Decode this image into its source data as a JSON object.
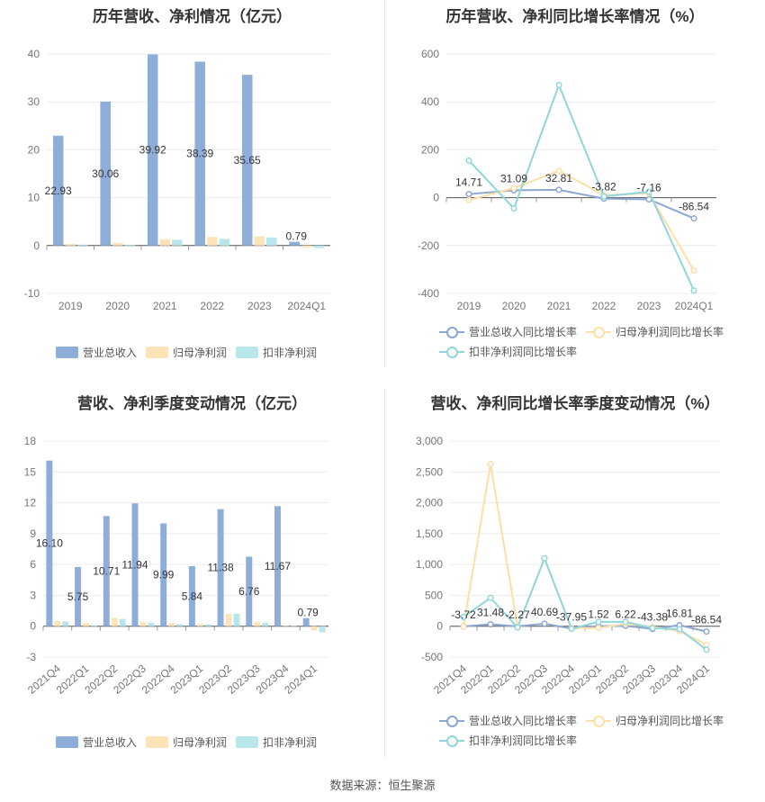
{
  "source": "数据来源：恒生聚源",
  "colors": {
    "revenue": "#8eadd9",
    "net": "#fde3b8",
    "deducted": "#b9e6ea",
    "revenue_line": "#8ca7d1",
    "net_line": "#fddfa7",
    "deducted_line": "#90d7dd"
  },
  "charts": [
    {
      "id": "annual-bar",
      "title": "历年营收、净利情况（亿元）",
      "type": "bar",
      "categories": [
        "2019",
        "2020",
        "2021",
        "2022",
        "2023",
        "2024Q1"
      ],
      "ylim": [
        -10,
        40
      ],
      "yticks": [
        "-10",
        "0",
        "10",
        "20",
        "30",
        "40"
      ],
      "series": [
        {
          "name": "营业总收入",
          "values": [
            22.93,
            30.06,
            39.92,
            38.39,
            35.65,
            0.79
          ],
          "labels": [
            "22.93",
            "30.06",
            "39.92",
            "38.39",
            "35.65",
            "0.79"
          ]
        },
        {
          "name": "归母净利润",
          "values": [
            0.3,
            0.55,
            1.3,
            1.8,
            1.9,
            -0.4
          ]
        },
        {
          "name": "扣非净利润",
          "values": [
            0.2,
            0.15,
            1.2,
            1.4,
            1.7,
            -0.5
          ]
        }
      ],
      "legend": [
        "营业总收入",
        "归母净利润",
        "扣非净利润"
      ]
    },
    {
      "id": "annual-line",
      "title": "历年营收、净利同比增长率情况（%）",
      "type": "line",
      "categories": [
        "2019",
        "2020",
        "2021",
        "2022",
        "2023",
        "2024Q1"
      ],
      "ylim": [
        -400,
        600
      ],
      "yticks": [
        "-400",
        "-200",
        "0",
        "200",
        "400",
        "600"
      ],
      "series": [
        {
          "name": "营业总收入同比增长率",
          "values": [
            14.71,
            31.09,
            32.81,
            -3.82,
            -7.16,
            -86.54
          ],
          "labels": [
            "14.71",
            "31.09",
            "32.81",
            "-3.82",
            "-7.16",
            "-86.54"
          ]
        },
        {
          "name": "归母净利润同比增长率",
          "values": [
            -10,
            40,
            112,
            10,
            18,
            -305
          ]
        },
        {
          "name": "扣非净利润同比增长率",
          "values": [
            155,
            -45,
            470,
            5,
            25,
            -388
          ]
        }
      ],
      "legend": [
        "营业总收入同比增长率",
        "归母净利润同比增长率",
        "扣非净利润同比增长率"
      ]
    },
    {
      "id": "quarter-bar",
      "title": "营收、净利季度变动情况（亿元）",
      "type": "bar",
      "categories": [
        "2021Q4",
        "2022Q1",
        "2022Q2",
        "2022Q3",
        "2022Q4",
        "2023Q1",
        "2023Q2",
        "2023Q3",
        "2023Q4",
        "2024Q1"
      ],
      "ylim": [
        -3,
        18
      ],
      "yticks": [
        "-3",
        "0",
        "3",
        "6",
        "9",
        "12",
        "15",
        "18"
      ],
      "series": [
        {
          "name": "营业总收入",
          "values": [
            16.1,
            5.75,
            10.71,
            11.94,
            9.99,
            5.84,
            11.38,
            6.76,
            11.67,
            0.79
          ],
          "labels": [
            "16.10",
            "5.75",
            "10.71",
            "11.94",
            "9.99",
            "5.84",
            "11.38",
            "6.76",
            "11.67",
            "0.79"
          ]
        },
        {
          "name": "归母净利润",
          "values": [
            0.5,
            0.3,
            0.8,
            0.4,
            0.3,
            0.2,
            1.2,
            0.4,
            0.05,
            -0.4
          ]
        },
        {
          "name": "扣非净利润",
          "values": [
            0.45,
            0.1,
            0.7,
            0.35,
            0.2,
            0.15,
            1.2,
            0.35,
            0.03,
            -0.6
          ]
        }
      ],
      "legend": [
        "营业总收入",
        "归母净利润",
        "扣非净利润"
      ]
    },
    {
      "id": "quarter-line",
      "title": "营收、净利同比增长率季度变动情况（%）",
      "type": "line",
      "categories": [
        "2021Q4",
        "2022Q1",
        "2022Q2",
        "2022Q3",
        "2022Q4",
        "2023Q1",
        "2023Q2",
        "2023Q3",
        "2023Q4",
        "2024Q1"
      ],
      "ylim": [
        -500,
        3000
      ],
      "yticks": [
        "-500",
        "0",
        "500",
        "1,000",
        "1,500",
        "2,000",
        "2,500",
        "3,000"
      ],
      "series": [
        {
          "name": "营业总收入同比增长率",
          "values": [
            -3.72,
            31.48,
            -2.27,
            40.69,
            -37.95,
            1.52,
            6.22,
            -43.38,
            16.81,
            -86.54
          ],
          "labels": [
            "-3.72",
            "31.48",
            "-2.27",
            "40.69",
            "-37.95",
            "1.52",
            "6.22",
            "-43.38",
            "16.81",
            "-86.54"
          ]
        },
        {
          "name": "归母净利润同比增长率",
          "values": [
            -5,
            2630,
            -10,
            1090,
            -30,
            -30,
            40,
            -10,
            -80,
            -300
          ]
        },
        {
          "name": "扣非净利润同比增长率",
          "values": [
            150,
            460,
            -20,
            1100,
            -40,
            70,
            70,
            -30,
            -50,
            -380
          ]
        }
      ],
      "legend": [
        "营业总收入同比增长率",
        "归母净利润同比增长率",
        "扣非净利润同比增长率"
      ]
    }
  ]
}
